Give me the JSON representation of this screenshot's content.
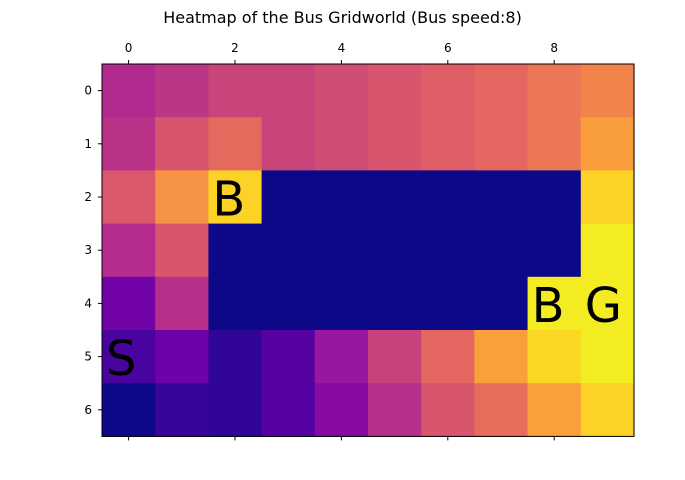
{
  "chart_data": {
    "type": "heatmap",
    "title": "Heatmap of the Bus Gridworld (Bus speed:8)",
    "xlabel": "",
    "ylabel": "",
    "x_ticks": [
      0,
      2,
      4,
      6,
      8
    ],
    "y_ticks": [
      0,
      1,
      2,
      3,
      4,
      5,
      6
    ],
    "x_axis_position": "top",
    "colormap": "plasma",
    "obstacle_color": "#0d0887",
    "rows": 7,
    "cols": 10,
    "values": [
      [
        0.4,
        0.44,
        0.49,
        0.49,
        0.52,
        0.55,
        0.58,
        0.61,
        0.66,
        0.7
      ],
      [
        0.43,
        0.55,
        0.62,
        0.49,
        0.52,
        0.55,
        0.58,
        0.61,
        0.66,
        0.77
      ],
      [
        0.56,
        0.74,
        0.91,
        null,
        null,
        null,
        null,
        null,
        null,
        0.91
      ],
      [
        0.41,
        0.55,
        null,
        null,
        null,
        null,
        null,
        null,
        null,
        0.97
      ],
      [
        0.22,
        0.42,
        null,
        null,
        null,
        null,
        null,
        null,
        0.97,
        0.97
      ],
      [
        0.12,
        0.21,
        0.07,
        0.15,
        0.33,
        0.48,
        0.61,
        0.78,
        0.92,
        0.97
      ],
      [
        0.0,
        0.08,
        0.07,
        0.15,
        0.28,
        0.42,
        0.55,
        0.63,
        0.78,
        0.91
      ]
    ],
    "annotations": [
      {
        "text": "B",
        "row": 2,
        "col": 2
      },
      {
        "text": "B",
        "row": 4,
        "col": 8
      },
      {
        "text": "G",
        "row": 4,
        "col": 9
      },
      {
        "text": "S",
        "row": 5,
        "col": 0
      }
    ],
    "grid": false
  }
}
